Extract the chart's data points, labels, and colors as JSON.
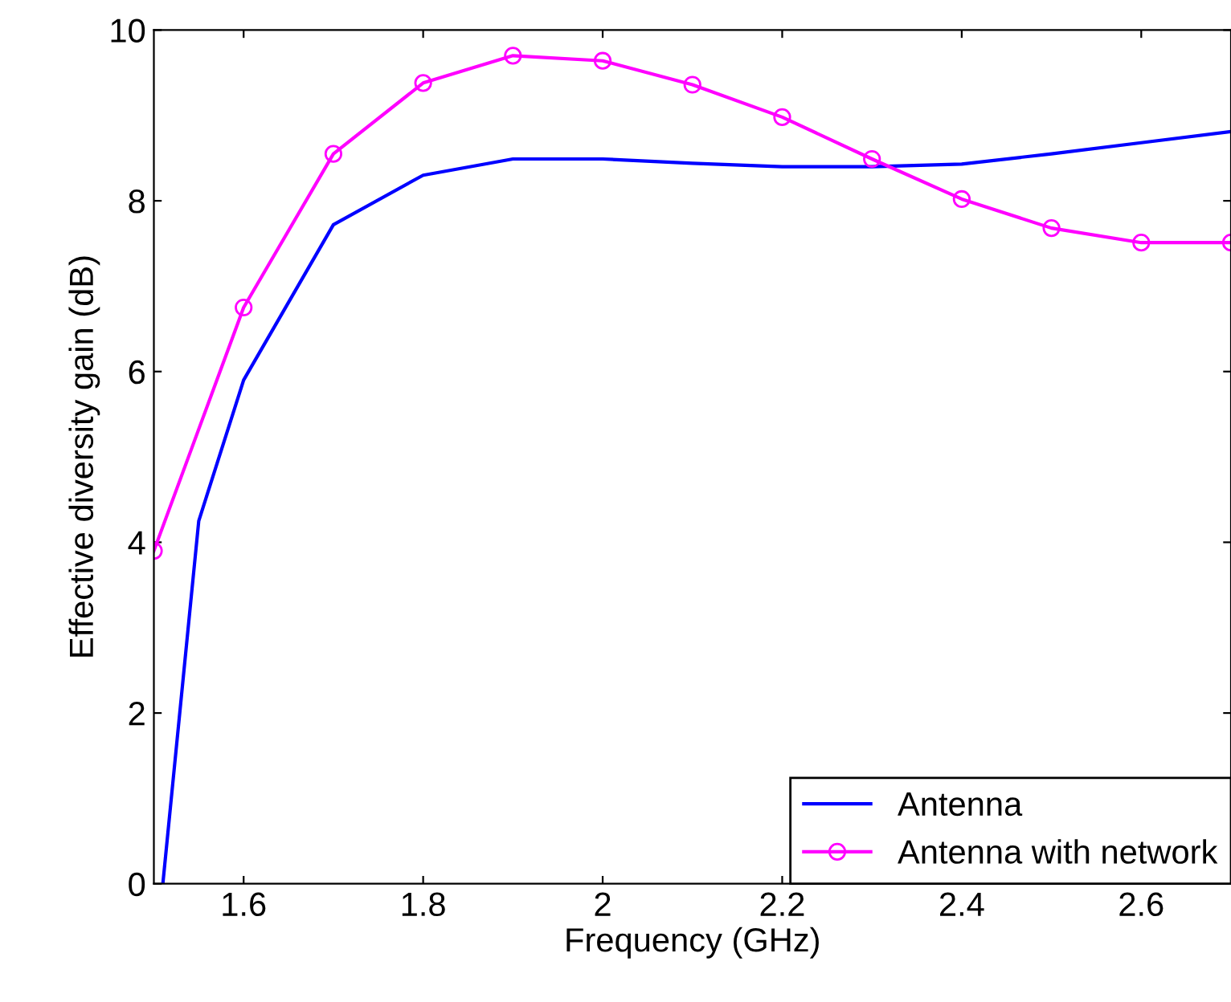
{
  "chart_data": {
    "type": "line",
    "xlabel": "Frequency (GHz)",
    "ylabel": "Effective diversity gain (dB)",
    "xlim": [
      1.5,
      2.7
    ],
    "xticks": [
      1.6,
      1.8,
      2,
      2.2,
      2.4,
      2.6
    ],
    "ylim": [
      0,
      10
    ],
    "yticks": [
      0,
      2,
      4,
      6,
      8,
      10
    ],
    "grid": false,
    "legend": "bottom right",
    "series": [
      {
        "name": "Antenna",
        "color": "#0000ff",
        "marker": "none",
        "x": [
          1.51,
          1.55,
          1.6,
          1.7,
          1.8,
          1.9,
          2.0,
          2.1,
          2.2,
          2.3,
          2.4,
          2.5,
          2.6,
          2.7
        ],
        "values": [
          0,
          4.25,
          5.9,
          7.72,
          8.3,
          8.49,
          8.49,
          8.44,
          8.4,
          8.4,
          8.43,
          8.55,
          8.68,
          8.81
        ]
      },
      {
        "name": "Antenna with network",
        "color": "#ff00ff",
        "marker": "circle",
        "x": [
          1.5,
          1.6,
          1.7,
          1.8,
          1.9,
          2.0,
          2.1,
          2.2,
          2.3,
          2.4,
          2.5,
          2.6,
          2.7
        ],
        "values": [
          3.9,
          6.75,
          8.55,
          9.38,
          9.7,
          9.64,
          9.36,
          8.98,
          8.49,
          8.02,
          7.68,
          7.51,
          7.51
        ]
      }
    ]
  }
}
